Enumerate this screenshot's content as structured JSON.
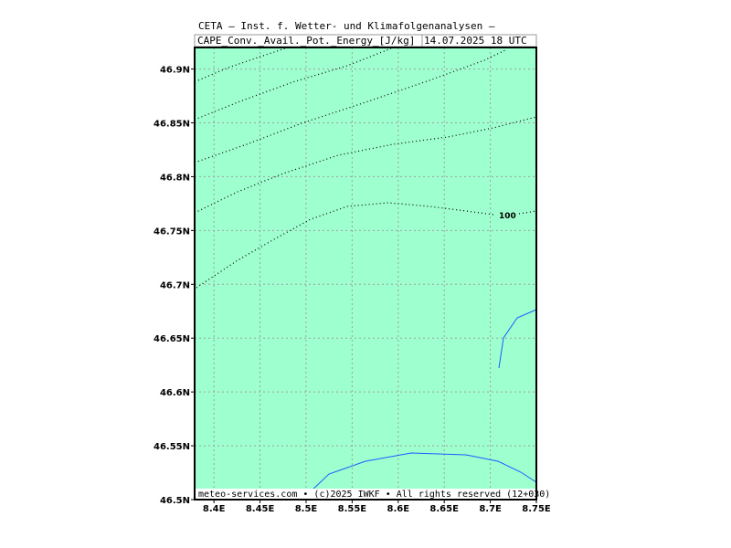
{
  "header": {
    "title": "CETA – Inst. f. Wetter- und Klimafolgenanalysen –",
    "variable": "CAPE_Conv._Avail._Pot._Energy_[J/kg]",
    "time": "14.07.2025 18 UTC"
  },
  "map": {
    "xlim": [
      8.379,
      8.75
    ],
    "ylim": [
      46.5,
      46.92
    ],
    "xticks": [
      {
        "value": 8.4,
        "label": "8.4E"
      },
      {
        "value": 8.45,
        "label": "8.45E"
      },
      {
        "value": 8.5,
        "label": "8.5E"
      },
      {
        "value": 8.55,
        "label": "8.55E"
      },
      {
        "value": 8.6,
        "label": "8.6E"
      },
      {
        "value": 8.65,
        "label": "8.65E"
      },
      {
        "value": 8.7,
        "label": "8.7E"
      },
      {
        "value": 8.75,
        "label": "8.75E"
      }
    ],
    "yticks": [
      {
        "value": 46.5,
        "label": "46.5N"
      },
      {
        "value": 46.55,
        "label": "46.55N"
      },
      {
        "value": 46.6,
        "label": "46.6N"
      },
      {
        "value": 46.65,
        "label": "46.65N"
      },
      {
        "value": 46.7,
        "label": "46.7N"
      },
      {
        "value": 46.75,
        "label": "46.75N"
      },
      {
        "value": 46.8,
        "label": "46.8N"
      },
      {
        "value": 46.85,
        "label": "46.85N"
      },
      {
        "value": 46.9,
        "label": "46.9N"
      }
    ],
    "contour_label": "100"
  },
  "footer": "meteo-services.com • (c)2025 IWKF • All rights reserved (12+030)"
}
